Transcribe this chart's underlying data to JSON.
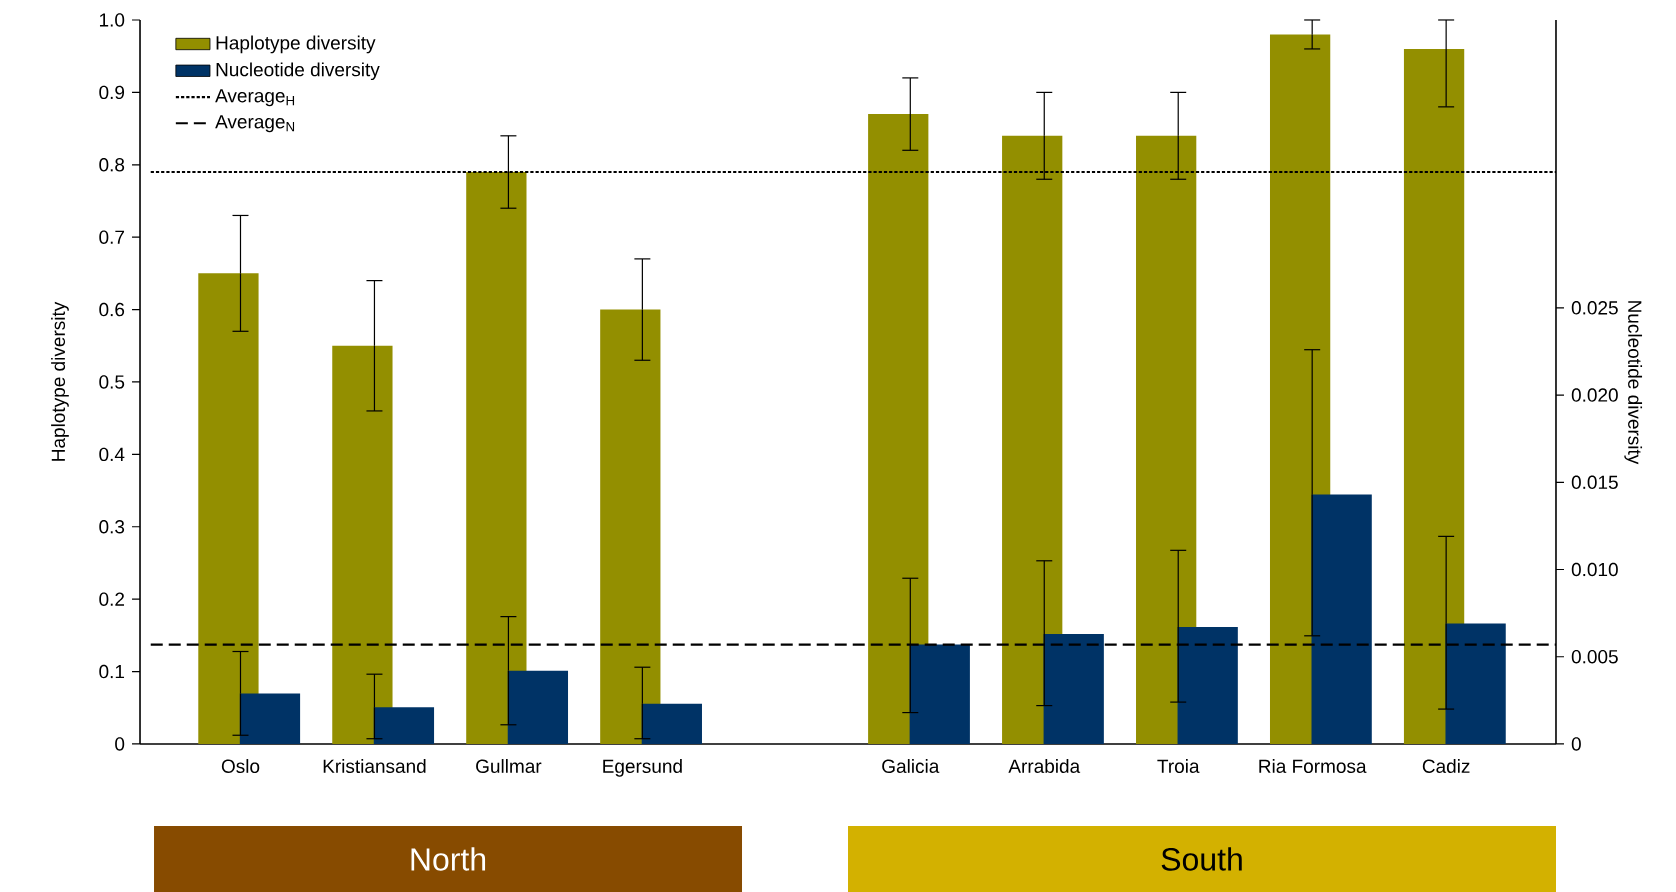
{
  "chart_data": {
    "type": "bar",
    "xlabel": null,
    "ylabel": "Haplotype diversity",
    "y2label": "Nucleotide diversity",
    "categories": [
      "Oslo",
      "Kristiansand",
      "Gullmar",
      "Egersund",
      null,
      "Galicia",
      "Arrabida",
      "Troia",
      "Ria Formosa",
      "Cadiz"
    ],
    "series": [
      {
        "name": "Haplotype diversity",
        "color": "#938f00",
        "values": [
          0.65,
          0.55,
          0.79,
          0.6,
          null,
          0.87,
          0.84,
          0.84,
          0.98,
          0.96
        ],
        "errors": [
          [
            0.57,
            0.73
          ],
          [
            0.46,
            0.64
          ],
          [
            0.74,
            0.84
          ],
          [
            0.53,
            0.67
          ],
          null,
          [
            0.82,
            0.92
          ],
          [
            0.78,
            0.9
          ],
          [
            0.78,
            0.9
          ],
          [
            0.96,
            1.0
          ],
          [
            0.88,
            1.0
          ]
        ]
      },
      {
        "name": "Nucleotide diversity",
        "color": "#003366",
        "axis": "y2",
        "values": [
          0.0029,
          0.0021,
          0.0042,
          0.0023,
          null,
          0.0057,
          0.0063,
          0.0067,
          0.0143,
          0.0069
        ],
        "errors": [
          [
            0.0005,
            0.0053
          ],
          [
            0.0003,
            0.004
          ],
          [
            0.0011,
            0.0073
          ],
          [
            0.0003,
            0.0044
          ],
          null,
          [
            0.0018,
            0.0095
          ],
          [
            0.0022,
            0.0105
          ],
          [
            0.0024,
            0.0111
          ],
          [
            0.0062,
            0.0226
          ],
          [
            0.002,
            0.0119
          ]
        ]
      }
    ],
    "ylim": [
      0,
      1.0
    ],
    "yticks": [
      0,
      0.1,
      0.2,
      0.3,
      0.4,
      0.5,
      0.6,
      0.7,
      0.8,
      0.9,
      {
        "value": 1.0,
        "label": "1.0"
      }
    ],
    "y2lim": [
      0,
      0.0415
    ],
    "y2ticks": [
      0,
      0.005,
      {
        "value": 0.01,
        "label": "0.010"
      },
      0.015,
      {
        "value": 0.02,
        "label": "0.020"
      },
      0.025
    ],
    "ref_lines": [
      {
        "axis": "y",
        "value": 0.79,
        "label": "Average$_{H}$",
        "line_style": "dotted"
      },
      {
        "axis": "y2",
        "value": 0.0057,
        "label": "Average$_{N}$",
        "line_style": "dashed"
      }
    ],
    "legend": "top left",
    "grid": false,
    "annotations": [
      "North",
      "South"
    ]
  }
}
